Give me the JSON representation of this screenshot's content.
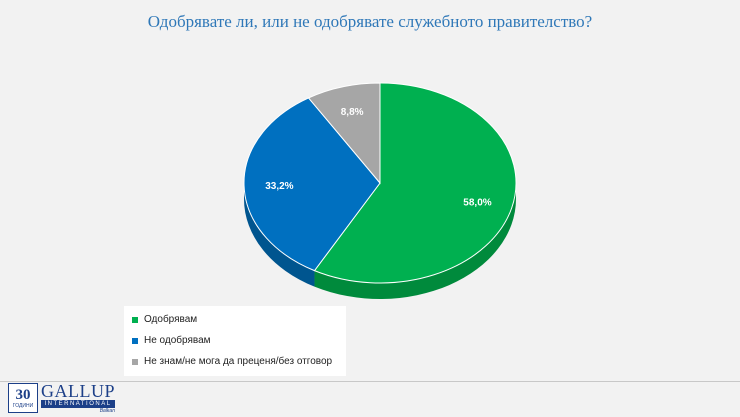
{
  "title": "Одобрявате ли, или не одобрявате служебното правителство?",
  "chart_data": {
    "type": "pie",
    "title": "Одобрявате ли, или не одобрявате служебното правителство?",
    "categories": [
      "Одобрявам",
      "Не одобрявам",
      "Не знам/не мога да преценя/без отговор"
    ],
    "values": [
      58.0,
      33.2,
      8.8
    ],
    "labels": [
      "58,0%",
      "33,2%",
      "8,8%"
    ],
    "colors": [
      "#00b050",
      "#0070c0",
      "#a6a6a6"
    ],
    "side_colors": [
      "#008a3c",
      "#00558f",
      "#7f7f7f"
    ],
    "legend_position": "bottom-left"
  },
  "legend": {
    "items": [
      {
        "label": "Одобрявам",
        "color": "#00b050"
      },
      {
        "label": "Не одобрявам",
        "color": "#0070c0"
      },
      {
        "label": "Не знам/не мога да преценя/без отговор",
        "color": "#a6a6a6"
      }
    ]
  },
  "logo": {
    "years": "30",
    "years_sub": "ГОДИНИ",
    "brand": "GALLUP",
    "sub": "INTERNATIONAL",
    "region": "Balkan"
  }
}
